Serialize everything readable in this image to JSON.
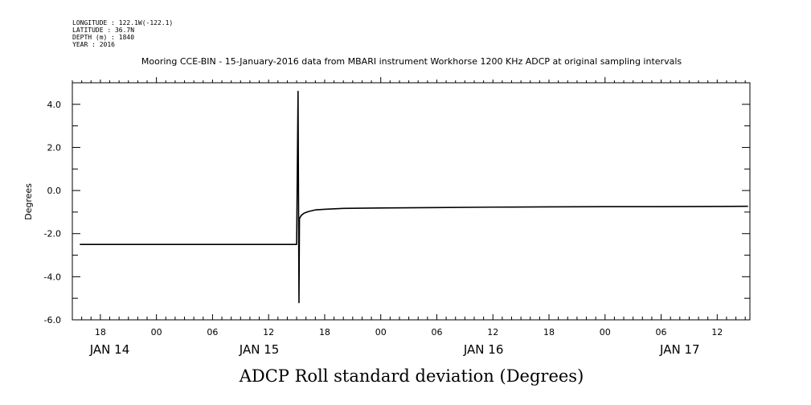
{
  "header": {
    "meta_lines": [
      "LONGITUDE : 122.1W(-122.1)",
      "LATITUDE : 36.7N",
      "DEPTH (m) : 1840",
      "YEAR : 2016"
    ],
    "title": "Mooring CCE-BIN - 15-January-2016 data from MBARI instrument Workhorse 1200 KHz ADCP at original sampling intervals"
  },
  "colors": {
    "line": "#000000",
    "axis": "#000000",
    "background": "#ffffff"
  },
  "chart_data": {
    "type": "line",
    "title": "Mooring CCE-BIN - 15-January-2016 data from MBARI instrument Workhorse 1200 KHz ADCP at original sampling intervals",
    "xlabel": "ADCP Roll standard deviation (Degrees)",
    "ylabel": "Degrees",
    "ylim": [
      -6.0,
      5.0
    ],
    "yticks": [
      -6.0,
      -4.0,
      -2.0,
      0.0,
      2.0,
      4.0
    ],
    "ytick_labels": [
      "-6.0",
      "-4.0",
      "-2.0",
      "0.0",
      "2.0",
      "4.0"
    ],
    "x_units": "hours since 2016-01-14 00:00",
    "xlim": [
      15.0,
      87.5
    ],
    "xticks": [
      18,
      24,
      30,
      36,
      42,
      48,
      54,
      60,
      66,
      72,
      78,
      84
    ],
    "xtick_labels": [
      "18",
      "00",
      "06",
      "12",
      "18",
      "00",
      "06",
      "12",
      "18",
      "00",
      "06",
      "12"
    ],
    "date_labels": [
      {
        "x": 19,
        "label": "JAN 14"
      },
      {
        "x": 35,
        "label": "JAN 15"
      },
      {
        "x": 59,
        "label": "JAN 16"
      },
      {
        "x": 80,
        "label": "JAN 17"
      }
    ],
    "grid": false,
    "series": [
      {
        "x": [
          15.8,
          20,
          25,
          30,
          35,
          39.0,
          39.15,
          39.25,
          39.3,
          39.5,
          39.8,
          40.3,
          41,
          42,
          44,
          48,
          54,
          60,
          66,
          72,
          78,
          84,
          87.3
        ],
        "values": [
          -2.5,
          -2.5,
          -2.5,
          -2.5,
          -2.5,
          -2.5,
          4.6,
          -5.2,
          -1.3,
          -1.15,
          -1.05,
          -0.97,
          -0.9,
          -0.87,
          -0.83,
          -0.81,
          -0.79,
          -0.77,
          -0.76,
          -0.75,
          -0.75,
          -0.74,
          -0.73
        ]
      }
    ]
  }
}
